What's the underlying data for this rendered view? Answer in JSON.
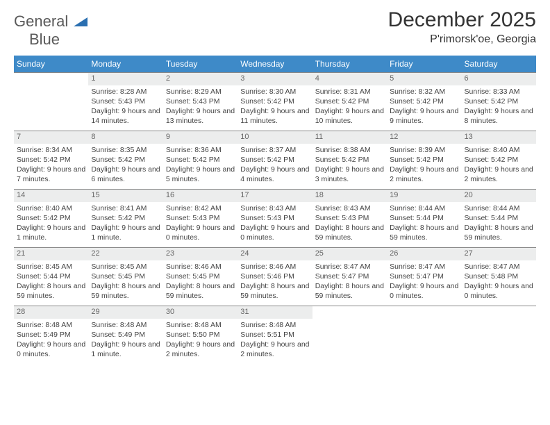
{
  "brand": {
    "name1": "General",
    "name2": "Blue",
    "tri_color": "#2a6fb0"
  },
  "title": "December 2025",
  "location": "P'rimorsk'oe, Georgia",
  "colors": {
    "header_bg": "#3e8ac8",
    "header_fg": "#ffffff",
    "daynum_bg": "#eceded",
    "border": "#888888",
    "text": "#444444"
  },
  "weekdays": [
    "Sunday",
    "Monday",
    "Tuesday",
    "Wednesday",
    "Thursday",
    "Friday",
    "Saturday"
  ],
  "weeks": [
    [
      null,
      {
        "n": "1",
        "sr": "8:28 AM",
        "ss": "5:43 PM",
        "dl": "9 hours and 14 minutes."
      },
      {
        "n": "2",
        "sr": "8:29 AM",
        "ss": "5:43 PM",
        "dl": "9 hours and 13 minutes."
      },
      {
        "n": "3",
        "sr": "8:30 AM",
        "ss": "5:42 PM",
        "dl": "9 hours and 11 minutes."
      },
      {
        "n": "4",
        "sr": "8:31 AM",
        "ss": "5:42 PM",
        "dl": "9 hours and 10 minutes."
      },
      {
        "n": "5",
        "sr": "8:32 AM",
        "ss": "5:42 PM",
        "dl": "9 hours and 9 minutes."
      },
      {
        "n": "6",
        "sr": "8:33 AM",
        "ss": "5:42 PM",
        "dl": "9 hours and 8 minutes."
      }
    ],
    [
      {
        "n": "7",
        "sr": "8:34 AM",
        "ss": "5:42 PM",
        "dl": "9 hours and 7 minutes."
      },
      {
        "n": "8",
        "sr": "8:35 AM",
        "ss": "5:42 PM",
        "dl": "9 hours and 6 minutes."
      },
      {
        "n": "9",
        "sr": "8:36 AM",
        "ss": "5:42 PM",
        "dl": "9 hours and 5 minutes."
      },
      {
        "n": "10",
        "sr": "8:37 AM",
        "ss": "5:42 PM",
        "dl": "9 hours and 4 minutes."
      },
      {
        "n": "11",
        "sr": "8:38 AM",
        "ss": "5:42 PM",
        "dl": "9 hours and 3 minutes."
      },
      {
        "n": "12",
        "sr": "8:39 AM",
        "ss": "5:42 PM",
        "dl": "9 hours and 2 minutes."
      },
      {
        "n": "13",
        "sr": "8:40 AM",
        "ss": "5:42 PM",
        "dl": "9 hours and 2 minutes."
      }
    ],
    [
      {
        "n": "14",
        "sr": "8:40 AM",
        "ss": "5:42 PM",
        "dl": "9 hours and 1 minute."
      },
      {
        "n": "15",
        "sr": "8:41 AM",
        "ss": "5:42 PM",
        "dl": "9 hours and 1 minute."
      },
      {
        "n": "16",
        "sr": "8:42 AM",
        "ss": "5:43 PM",
        "dl": "9 hours and 0 minutes."
      },
      {
        "n": "17",
        "sr": "8:43 AM",
        "ss": "5:43 PM",
        "dl": "9 hours and 0 minutes."
      },
      {
        "n": "18",
        "sr": "8:43 AM",
        "ss": "5:43 PM",
        "dl": "8 hours and 59 minutes."
      },
      {
        "n": "19",
        "sr": "8:44 AM",
        "ss": "5:44 PM",
        "dl": "8 hours and 59 minutes."
      },
      {
        "n": "20",
        "sr": "8:44 AM",
        "ss": "5:44 PM",
        "dl": "8 hours and 59 minutes."
      }
    ],
    [
      {
        "n": "21",
        "sr": "8:45 AM",
        "ss": "5:44 PM",
        "dl": "8 hours and 59 minutes."
      },
      {
        "n": "22",
        "sr": "8:45 AM",
        "ss": "5:45 PM",
        "dl": "8 hours and 59 minutes."
      },
      {
        "n": "23",
        "sr": "8:46 AM",
        "ss": "5:45 PM",
        "dl": "8 hours and 59 minutes."
      },
      {
        "n": "24",
        "sr": "8:46 AM",
        "ss": "5:46 PM",
        "dl": "8 hours and 59 minutes."
      },
      {
        "n": "25",
        "sr": "8:47 AM",
        "ss": "5:47 PM",
        "dl": "8 hours and 59 minutes."
      },
      {
        "n": "26",
        "sr": "8:47 AM",
        "ss": "5:47 PM",
        "dl": "9 hours and 0 minutes."
      },
      {
        "n": "27",
        "sr": "8:47 AM",
        "ss": "5:48 PM",
        "dl": "9 hours and 0 minutes."
      }
    ],
    [
      {
        "n": "28",
        "sr": "8:48 AM",
        "ss": "5:49 PM",
        "dl": "9 hours and 0 minutes."
      },
      {
        "n": "29",
        "sr": "8:48 AM",
        "ss": "5:49 PM",
        "dl": "9 hours and 1 minute."
      },
      {
        "n": "30",
        "sr": "8:48 AM",
        "ss": "5:50 PM",
        "dl": "9 hours and 2 minutes."
      },
      {
        "n": "31",
        "sr": "8:48 AM",
        "ss": "5:51 PM",
        "dl": "9 hours and 2 minutes."
      },
      null,
      null,
      null
    ]
  ],
  "labels": {
    "sunrise": "Sunrise:",
    "sunset": "Sunset:",
    "daylight": "Daylight:"
  }
}
